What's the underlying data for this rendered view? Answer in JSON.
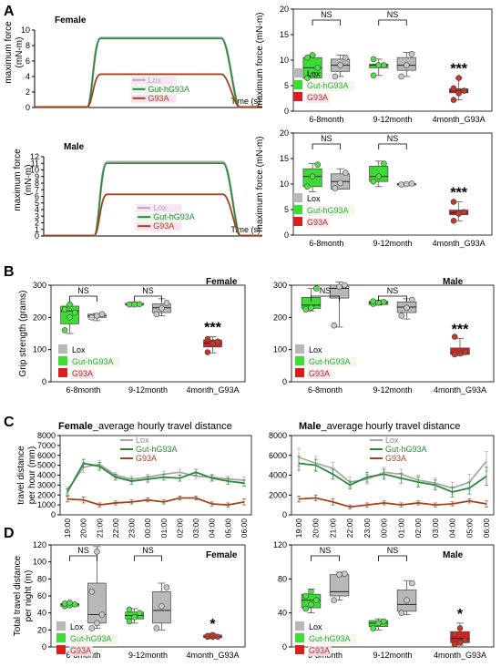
{
  "legend": [
    "Lox",
    "Gut-hG93A",
    "G93A"
  ],
  "colors": {
    "lox": "#9a9a9a",
    "gut": "#2eae3b",
    "gut_fill": "#3ddc34",
    "g93a": "#b22a1c",
    "g93a_fill": "#d81e1e",
    "traces_gut": "#2a8a3a",
    "traces_g93a": "#a0441e",
    "traces_lox": "#b0b0b0"
  },
  "panels": {
    "A": "A",
    "B": "B",
    "C": "C",
    "D": "D"
  },
  "sig": {
    "ns": "NS",
    "three": "***",
    "one": "*"
  },
  "chart_data": [
    {
      "id": "A_trace_female",
      "type": "line",
      "title": "Female",
      "ylabel": "maximum force (mN-m)",
      "xlabel": "Time (s)",
      "ylim": [
        0,
        10
      ],
      "yticks": [
        0,
        2,
        4,
        6,
        8,
        10
      ],
      "series": [
        {
          "name": "Lox",
          "plateau": 9.0
        },
        {
          "name": "Gut-hG93A",
          "plateau": 8.9
        },
        {
          "name": "G93A",
          "plateau": 4.3
        }
      ]
    },
    {
      "id": "A_trace_male",
      "type": "line",
      "title": "Male",
      "ylabel": "maximum force (mN-m)",
      "xlabel": "Time (s)",
      "ylim": [
        0,
        12
      ],
      "yticks": [
        0,
        1,
        2,
        3,
        4,
        5,
        6,
        7,
        8,
        9,
        10,
        11,
        12
      ],
      "series": [
        {
          "name": "Lox",
          "plateau": 11.2
        },
        {
          "name": "Gut-hG93A",
          "plateau": 11.0
        },
        {
          "name": "G93A",
          "plateau": 6.3
        }
      ]
    },
    {
      "id": "A_box_female",
      "type": "box",
      "ylabel": "maximum force (mN-m)",
      "ylim": [
        0,
        20
      ],
      "yticks": [
        0,
        5,
        10,
        15,
        20
      ],
      "categories": [
        "6-8month",
        "9-12month",
        "4month_G93A"
      ],
      "boxes": [
        {
          "group": "Gut-hG93A",
          "cat": 0,
          "min": 6.5,
          "q1": 6.5,
          "med": 8.5,
          "q3": 10.5,
          "max": 11.0,
          "points": [
            6.5,
            7.0,
            8.5,
            10.5,
            11.0
          ]
        },
        {
          "group": "Lox",
          "cat": 0,
          "min": 6.8,
          "q1": 7.8,
          "med": 9.0,
          "q3": 10.2,
          "max": 11.0,
          "points": [
            6.8,
            9.0,
            10.5
          ]
        },
        {
          "group": "Gut-hG93A",
          "cat": 1,
          "min": 7.0,
          "q1": 8.5,
          "med": 9.0,
          "q3": 9.2,
          "max": 10.2,
          "points": [
            7.0,
            9.0,
            9.0,
            10.2
          ]
        },
        {
          "group": "Lox",
          "cat": 1,
          "min": 6.8,
          "q1": 8.0,
          "med": 9.0,
          "q3": 10.5,
          "max": 11.5,
          "points": [
            6.8,
            9.0,
            11.2
          ]
        },
        {
          "group": "G93A",
          "cat": 2,
          "min": 2.2,
          "q1": 3.6,
          "med": 4.0,
          "q3": 4.4,
          "max": 6.5,
          "points": [
            2.2,
            3.5,
            4.0,
            4.5,
            6.5
          ]
        }
      ],
      "significance": [
        {
          "label": "NS",
          "cat": 0
        },
        {
          "label": "NS",
          "cat": 1
        },
        {
          "label": "***",
          "cat": 2
        }
      ]
    },
    {
      "id": "A_box_male",
      "type": "box",
      "ylabel": "maximum force (mN-m)",
      "ylim": [
        0,
        20
      ],
      "yticks": [
        0,
        5,
        10,
        15,
        20
      ],
      "categories": [
        "6-8month",
        "9-12month",
        "4month_G93A"
      ],
      "boxes": [
        {
          "group": "Gut-hG93A",
          "cat": 0,
          "min": 8.5,
          "q1": 9.5,
          "med": 11.5,
          "q3": 13.0,
          "max": 14.0,
          "points": [
            9.5,
            11.5,
            13.8
          ]
        },
        {
          "group": "Lox",
          "cat": 0,
          "min": 9.0,
          "q1": 9.0,
          "med": 10.5,
          "q3": 12.0,
          "max": 13.0,
          "points": [
            9.2,
            10.2,
            12.2
          ]
        },
        {
          "group": "Gut-hG93A",
          "cat": 1,
          "min": 9.5,
          "q1": 10.5,
          "med": 11.5,
          "q3": 13.5,
          "max": 14.5,
          "points": [
            10.5,
            11.5,
            14.0
          ]
        },
        {
          "group": "Lox",
          "cat": 1,
          "min": 9.8,
          "q1": 9.8,
          "med": 10.0,
          "q3": 10.1,
          "max": 10.2,
          "points": [
            9.9,
            10.0,
            10.1
          ]
        },
        {
          "group": "G93A",
          "cat": 2,
          "min": 2.8,
          "q1": 4.0,
          "med": 4.4,
          "q3": 4.9,
          "max": 6.5,
          "points": [
            2.8,
            4.2,
            4.5,
            6.5
          ]
        }
      ],
      "significance": [
        {
          "label": "NS",
          "cat": 0
        },
        {
          "label": "NS",
          "cat": 1
        },
        {
          "label": "***",
          "cat": 2
        }
      ]
    },
    {
      "id": "B_female",
      "type": "box",
      "title": "Female",
      "ylabel": "Grip strength (grams)",
      "ylim": [
        0,
        300
      ],
      "yticks": [
        0,
        100,
        200,
        300
      ],
      "categories": [
        "6-8month",
        "9-12month",
        "4month_G93A"
      ],
      "boxes": [
        {
          "group": "Gut-hG93A",
          "cat": 0,
          "min": 150,
          "q1": 180,
          "med": 220,
          "q3": 235,
          "max": 240,
          "points": [
            160,
            200,
            215,
            225,
            240
          ]
        },
        {
          "group": "Lox",
          "cat": 0,
          "min": 190,
          "q1": 200,
          "med": 205,
          "q3": 210,
          "max": 212,
          "points": [
            200,
            205,
            210
          ]
        },
        {
          "group": "Gut-hG93A",
          "cat": 1,
          "min": 235,
          "q1": 238,
          "med": 240,
          "q3": 244,
          "max": 248,
          "points": [
            240,
            240,
            241
          ]
        },
        {
          "group": "Lox",
          "cat": 1,
          "min": 205,
          "q1": 215,
          "med": 230,
          "q3": 242,
          "max": 258,
          "points": [
            210,
            228,
            245
          ]
        },
        {
          "group": "G93A",
          "cat": 2,
          "min": 90,
          "q1": 108,
          "med": 120,
          "q3": 130,
          "max": 140,
          "points": [
            92,
            118,
            125,
            133
          ]
        }
      ],
      "significance": [
        {
          "label": "NS",
          "cat": 0
        },
        {
          "label": "NS",
          "cat": 1
        },
        {
          "label": "***",
          "cat": 2
        }
      ]
    },
    {
      "id": "B_male",
      "type": "box",
      "title": "Male",
      "ylabel": "Grip strength (grams)",
      "ylim": [
        0,
        300
      ],
      "yticks": [
        0,
        100,
        200,
        300
      ],
      "categories": [
        "6-8month",
        "9-12month",
        "4month_G93A"
      ],
      "boxes": [
        {
          "group": "Gut-hG93A",
          "cat": 0,
          "min": 220,
          "q1": 228,
          "med": 238,
          "q3": 262,
          "max": 290,
          "points": [
            225,
            230,
            290
          ]
        },
        {
          "group": "Lox",
          "cat": 0,
          "min": 170,
          "q1": 260,
          "med": 290,
          "q3": 300,
          "max": 310,
          "points": [
            175,
            295,
            300
          ]
        },
        {
          "group": "Gut-hG93A",
          "cat": 1,
          "min": 238,
          "q1": 240,
          "med": 245,
          "q3": 250,
          "max": 253,
          "points": [
            242,
            246,
            248,
            250
          ]
        },
        {
          "group": "Lox",
          "cat": 1,
          "min": 195,
          "q1": 215,
          "med": 232,
          "q3": 248,
          "max": 258,
          "points": [
            205,
            230,
            255
          ]
        },
        {
          "group": "G93A",
          "cat": 2,
          "min": 82,
          "q1": 85,
          "med": 90,
          "q3": 105,
          "max": 135,
          "points": [
            85,
            88,
            92,
            140
          ]
        }
      ],
      "significance": [
        {
          "label": "NS",
          "cat": 0
        },
        {
          "label": "NS",
          "cat": 1
        },
        {
          "label": "***",
          "cat": 2
        }
      ]
    },
    {
      "id": "C_female",
      "type": "line",
      "title": "Female_average hourly travel distance",
      "ylabel": "travel distance per hour (mm)",
      "ylim": [
        0,
        8000
      ],
      "yticks": [
        0,
        1000,
        2000,
        3000,
        4000,
        5000,
        6000,
        7000,
        8000
      ],
      "categories": [
        "19:00",
        "20:00",
        "21:00",
        "22:00",
        "23:00",
        "00:00",
        "01:00",
        "02:00",
        "03:00",
        "04:00",
        "05:00",
        "06:00"
      ],
      "series": [
        {
          "name": "Lox",
          "values": [
            2500,
            4800,
            5100,
            4000,
            3600,
            3800,
            4100,
            4300,
            3900,
            3800,
            3600,
            3500
          ],
          "err": [
            300,
            500,
            400,
            300,
            300,
            300,
            300,
            300,
            300,
            300,
            300,
            300
          ]
        },
        {
          "name": "Gut-hG93A",
          "values": [
            2300,
            5200,
            4900,
            3800,
            3400,
            3600,
            3800,
            3700,
            4300,
            3700,
            3400,
            3200
          ],
          "err": [
            300,
            400,
            400,
            300,
            300,
            300,
            300,
            300,
            300,
            300,
            300,
            300
          ]
        },
        {
          "name": "G93A",
          "values": [
            1600,
            1500,
            1000,
            1200,
            1300,
            1500,
            1300,
            1700,
            1700,
            1100,
            1000,
            1300
          ],
          "err": [
            300,
            300,
            200,
            200,
            200,
            200,
            200,
            200,
            200,
            200,
            200,
            300
          ]
        }
      ]
    },
    {
      "id": "C_male",
      "type": "line",
      "title": "Male_average hourly travel distance",
      "ylim": [
        0,
        8000
      ],
      "yticks": [
        0,
        2000,
        4000,
        6000,
        8000
      ],
      "categories": [
        "19:00",
        "20:00",
        "21:00",
        "22:00",
        "23:00",
        "00:00",
        "01:00",
        "02:00",
        "03:00",
        "04:00",
        "05:00",
        "06:00"
      ],
      "series": [
        {
          "name": "Lox",
          "values": [
            5800,
            5200,
            4700,
            3300,
            3600,
            4300,
            4100,
            3500,
            3200,
            2700,
            3300,
            5400
          ],
          "err": [
            900,
            700,
            600,
            500,
            500,
            500,
            500,
            500,
            500,
            600,
            800,
            1000
          ]
        },
        {
          "name": "Gut-hG93A",
          "values": [
            5200,
            5000,
            4100,
            3000,
            3800,
            4100,
            3700,
            3300,
            3000,
            2300,
            2700,
            3900
          ],
          "err": [
            700,
            600,
            500,
            400,
            500,
            500,
            500,
            500,
            500,
            500,
            600,
            900
          ]
        },
        {
          "name": "G93A",
          "values": [
            1600,
            1700,
            1300,
            800,
            1000,
            1200,
            1000,
            1200,
            1000,
            1100,
            1400,
            1100
          ],
          "err": [
            300,
            300,
            300,
            200,
            200,
            200,
            200,
            200,
            200,
            200,
            200,
            300
          ]
        }
      ]
    },
    {
      "id": "D_female",
      "type": "box",
      "title": "Female",
      "ylabel": "Total travel distance per night (m)",
      "ylim": [
        0,
        120
      ],
      "yticks": [
        0,
        20,
        40,
        60,
        80,
        100,
        120
      ],
      "categories": [
        "6-8month",
        "9-12month",
        "4month_G93A"
      ],
      "boxes": [
        {
          "group": "Gut-hG93A",
          "cat": 0,
          "min": 48,
          "q1": 48,
          "med": 50,
          "q3": 51,
          "max": 52,
          "points": [
            48,
            49,
            50,
            51,
            52
          ]
        },
        {
          "group": "Lox",
          "cat": 0,
          "min": 22,
          "q1": 28,
          "med": 38,
          "q3": 75,
          "max": 118,
          "points": [
            22,
            28,
            38,
            65,
            112
          ]
        },
        {
          "group": "Gut-hG93A",
          "cat": 1,
          "min": 28,
          "q1": 33,
          "med": 37,
          "q3": 41,
          "max": 45,
          "points": [
            30,
            35,
            40,
            44
          ]
        },
        {
          "group": "Lox",
          "cat": 1,
          "min": 20,
          "q1": 28,
          "med": 43,
          "q3": 65,
          "max": 75,
          "points": [
            22,
            48,
            70
          ]
        },
        {
          "group": "G93A",
          "cat": 2,
          "min": 10,
          "q1": 11,
          "med": 12,
          "q3": 14,
          "max": 16,
          "points": [
            12,
            12,
            12,
            13,
            14
          ]
        }
      ],
      "significance": [
        {
          "label": "NS",
          "cat": 0
        },
        {
          "label": "NS",
          "cat": 1
        },
        {
          "label": "*",
          "cat": 2
        }
      ]
    },
    {
      "id": "D_male",
      "type": "box",
      "title": "Male",
      "ylim": [
        0,
        120
      ],
      "yticks": [
        0,
        40,
        80,
        120
      ],
      "categories": [
        "6-8month",
        "9-12month",
        "4month_G93A"
      ],
      "boxes": [
        {
          "group": "Gut-hG93A",
          "cat": 0,
          "min": 40,
          "q1": 46,
          "med": 55,
          "q3": 62,
          "max": 68,
          "points": [
            45,
            50,
            55,
            60,
            65
          ]
        },
        {
          "group": "Lox",
          "cat": 0,
          "min": 55,
          "q1": 60,
          "med": 65,
          "q3": 85,
          "max": 88,
          "points": [
            55,
            85,
            86
          ]
        },
        {
          "group": "Gut-hG93A",
          "cat": 1,
          "min": 20,
          "q1": 24,
          "med": 28,
          "q3": 31,
          "max": 33,
          "points": [
            22,
            28,
            30
          ]
        },
        {
          "group": "Lox",
          "cat": 1,
          "min": 38,
          "q1": 42,
          "med": 50,
          "q3": 67,
          "max": 78,
          "points": [
            40,
            55,
            75
          ]
        },
        {
          "group": "G93A",
          "cat": 2,
          "min": 2,
          "q1": 5,
          "med": 10,
          "q3": 18,
          "max": 28,
          "points": [
            3,
            5,
            8,
            15,
            22
          ]
        }
      ],
      "significance": [
        {
          "label": "NS",
          "cat": 0
        },
        {
          "label": "NS",
          "cat": 1
        },
        {
          "label": "*",
          "cat": 2
        }
      ]
    }
  ]
}
